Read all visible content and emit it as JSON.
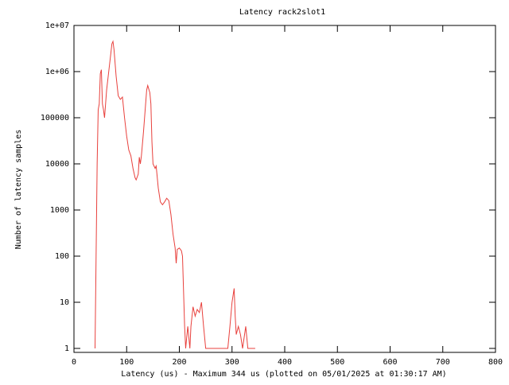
{
  "chart_data": {
    "type": "line",
    "title": "Latency rack2slot1",
    "x_label": "Latency (us) - Maximum 344 us (plotted on 05/01/2025 at 01:30:17 AM)",
    "y_label": "Number of latency samples",
    "log_y": true,
    "grid": false,
    "xlim": [
      0,
      800
    ],
    "xticks": [
      0,
      100,
      200,
      300,
      400,
      500,
      600,
      700,
      800
    ],
    "ylim": [
      0.82,
      10000000
    ],
    "yticks": [
      1,
      10,
      100,
      1000,
      10000,
      100000,
      {
        "value": 1000000,
        "label": "1e+06"
      },
      {
        "value": 10000000,
        "label": "1e+07"
      }
    ],
    "series": [
      {
        "color": "#e8403c",
        "x": [
          40,
          42,
          44,
          46,
          48,
          50,
          52,
          54,
          56,
          58,
          60,
          62,
          66,
          70,
          72,
          74,
          76,
          80,
          84,
          88,
          92,
          96,
          100,
          104,
          108,
          112,
          116,
          118,
          122,
          124,
          126,
          128,
          132,
          134,
          138,
          140,
          144,
          146,
          148,
          150,
          154,
          156,
          160,
          164,
          168,
          172,
          176,
          180,
          184,
          188,
          192,
          194,
          196,
          200,
          204,
          206,
          210,
          212,
          216,
          220,
          222,
          226,
          230,
          234,
          238,
          242,
          246,
          250,
          256,
          260,
          292,
          296,
          300,
          304,
          306,
          308,
          312,
          316,
          320,
          326,
          330,
          344
        ],
        "values": [
          1,
          100,
          10000,
          150000,
          200000,
          900000,
          1100000,
          200000,
          150000,
          100000,
          200000,
          400000,
          1000000,
          2500000,
          4000000,
          4500000,
          3000000,
          800000,
          300000,
          250000,
          280000,
          100000,
          40000,
          20000,
          15000,
          8000,
          5000,
          4500,
          6000,
          14000,
          10000,
          15000,
          50000,
          100000,
          400000,
          500000,
          350000,
          200000,
          30000,
          10000,
          8000,
          9000,
          3000,
          1500,
          1300,
          1500,
          1800,
          1600,
          800,
          300,
          150,
          70,
          140,
          150,
          130,
          100,
          3,
          1,
          3,
          1,
          3,
          8,
          5,
          7,
          6,
          10,
          3,
          1,
          1,
          1,
          1,
          3,
          10,
          20,
          5,
          2,
          3,
          2,
          1,
          3,
          1,
          1
        ]
      }
    ]
  }
}
